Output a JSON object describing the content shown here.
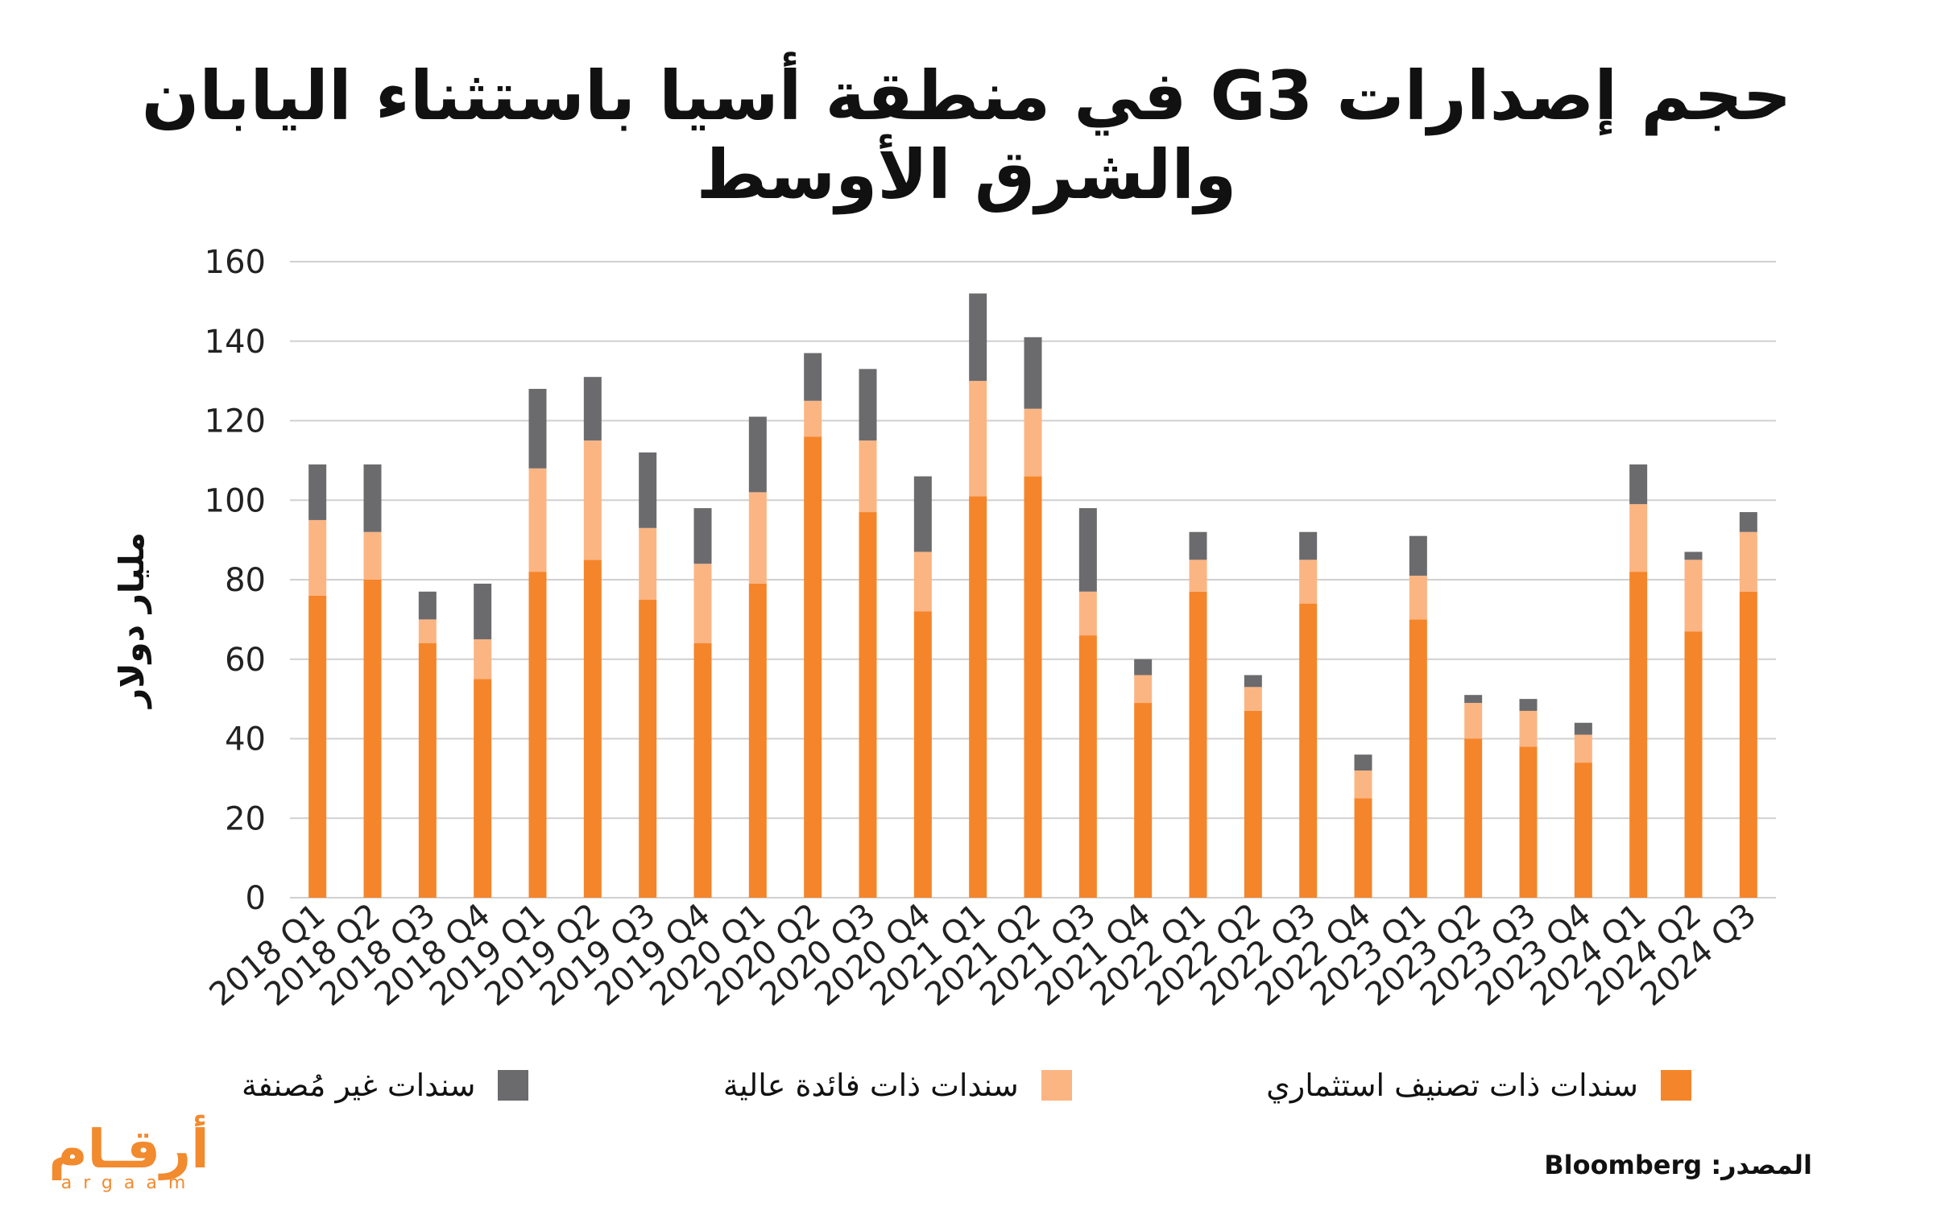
{
  "title": "حجم إصدارات G3 في منطقة أسيا باستثناء اليابان والشرق الأوسط",
  "source": "المصدر: Bloomberg",
  "logo": {
    "arabic": "أرقـام",
    "latin": "argaam"
  },
  "colors": {
    "investment_grade": "#f5852a",
    "high_yield": "#fbb583",
    "unrated": "#6b6b6d",
    "grid": "#d0d0d0"
  },
  "legend": [
    {
      "label": "سندات ذات تصنيف استثماري",
      "color": "#f5852a"
    },
    {
      "label": "سندات ذات فائدة عالية",
      "color": "#fbb583"
    },
    {
      "label": "سندات غير مُصنفة",
      "color": "#6b6b6d"
    }
  ],
  "chart_data": {
    "type": "bar",
    "stacked": true,
    "ylabel": "مليار دولار",
    "ylim": [
      0,
      160
    ],
    "yticks": [
      0,
      20,
      40,
      60,
      80,
      100,
      120,
      140,
      160
    ],
    "grid": true,
    "legend_position": "bottom",
    "categories": [
      "2018 Q1",
      "2018 Q2",
      "2018 Q3",
      "2018 Q4",
      "2019 Q1",
      "2019 Q2",
      "2019 Q3",
      "2019 Q4",
      "2020 Q1",
      "2020 Q2",
      "2020 Q3",
      "2020 Q4",
      "2021 Q1",
      "2021 Q2",
      "2021 Q3",
      "2021 Q4",
      "2022 Q1",
      "2022 Q2",
      "2022 Q3",
      "2022 Q4",
      "2023 Q1",
      "2023 Q2",
      "2023 Q3",
      "2023 Q4",
      "2024 Q1",
      "2024 Q2",
      "2024 Q3"
    ],
    "series": [
      {
        "name": "سندات ذات تصنيف استثماري",
        "color": "#f5852a",
        "values": [
          76,
          80,
          64,
          55,
          82,
          85,
          75,
          64,
          79,
          116,
          97,
          72,
          101,
          106,
          66,
          49,
          77,
          47,
          74,
          25,
          70,
          40,
          38,
          34,
          82,
          67,
          77
        ]
      },
      {
        "name": "سندات ذات فائدة عالية",
        "color": "#fbb583",
        "values": [
          19,
          12,
          6,
          10,
          26,
          30,
          18,
          20,
          23,
          9,
          18,
          15,
          29,
          17,
          11,
          7,
          8,
          6,
          11,
          7,
          11,
          9,
          9,
          7,
          17,
          18,
          15
        ]
      },
      {
        "name": "سندات غير مُصنفة",
        "color": "#6b6b6d",
        "values": [
          14,
          17,
          7,
          14,
          20,
          16,
          19,
          14,
          19,
          12,
          18,
          19,
          22,
          18,
          21,
          4,
          7,
          3,
          7,
          4,
          10,
          2,
          3,
          3,
          10,
          2,
          5
        ]
      }
    ]
  }
}
